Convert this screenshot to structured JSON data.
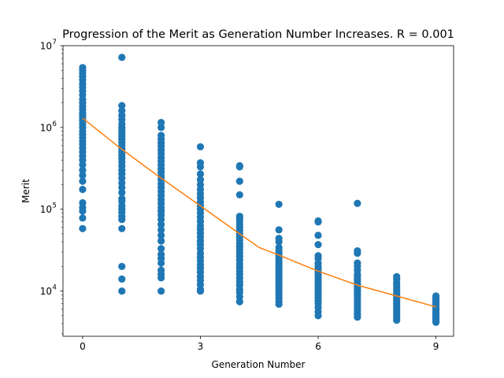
{
  "chart_data": {
    "type": "scatter",
    "title": "Progression of the Merit as Generation Number Increases. R = 0.001",
    "xlabel": "Generation Number",
    "ylabel": "Merit",
    "xlim": [
      -0.5,
      9.45
    ],
    "ylim": [
      2800,
      10000000
    ],
    "y_scale": "log",
    "x_ticks": [
      0,
      3,
      6,
      9
    ],
    "x_tick_labels": [
      "0",
      "3",
      "6",
      "9"
    ],
    "y_ticks": [
      10000,
      100000,
      1000000,
      10000000
    ],
    "y_tick_labels": [
      "10",
      "10",
      "10",
      "10"
    ],
    "y_tick_exponents": [
      "4",
      "5",
      "6",
      "7"
    ],
    "grid": false,
    "colors": {
      "points": "#1f77b4",
      "trend": "#ff7f0e"
    },
    "series": [
      {
        "kind": "scatter",
        "points": [
          [
            0,
            5400000
          ],
          [
            0,
            5000000
          ],
          [
            0,
            4600000
          ],
          [
            0,
            4200000
          ],
          [
            0,
            3800000
          ],
          [
            0,
            3400000
          ],
          [
            0,
            3100000
          ],
          [
            0,
            2800000
          ],
          [
            0,
            2500000
          ],
          [
            0,
            2200000
          ],
          [
            0,
            2000000
          ],
          [
            0,
            1800000
          ],
          [
            0,
            1650000
          ],
          [
            0,
            1500000
          ],
          [
            0,
            1400000
          ],
          [
            0,
            1300000
          ],
          [
            0,
            1200000
          ],
          [
            0,
            1100000
          ],
          [
            0,
            1000000
          ],
          [
            0,
            900000
          ],
          [
            0,
            820000
          ],
          [
            0,
            750000
          ],
          [
            0,
            680000
          ],
          [
            0,
            620000
          ],
          [
            0,
            560000
          ],
          [
            0,
            500000
          ],
          [
            0,
            450000
          ],
          [
            0,
            400000
          ],
          [
            0,
            350000
          ],
          [
            0,
            300000
          ],
          [
            0,
            260000
          ],
          [
            0,
            220000
          ],
          [
            0,
            175000
          ],
          [
            0,
            120000
          ],
          [
            0,
            105000
          ],
          [
            0,
            95000
          ],
          [
            0,
            78000
          ],
          [
            0,
            58000
          ],
          [
            1,
            7200000
          ],
          [
            1,
            1850000
          ],
          [
            1,
            1600000
          ],
          [
            1,
            1400000
          ],
          [
            1,
            1250000
          ],
          [
            1,
            1100000
          ],
          [
            1,
            1000000
          ],
          [
            1,
            920000
          ],
          [
            1,
            850000
          ],
          [
            1,
            780000
          ],
          [
            1,
            720000
          ],
          [
            1,
            660000
          ],
          [
            1,
            600000
          ],
          [
            1,
            550000
          ],
          [
            1,
            500000
          ],
          [
            1,
            460000
          ],
          [
            1,
            420000
          ],
          [
            1,
            380000
          ],
          [
            1,
            340000
          ],
          [
            1,
            300000
          ],
          [
            1,
            270000
          ],
          [
            1,
            240000
          ],
          [
            1,
            210000
          ],
          [
            1,
            185000
          ],
          [
            1,
            160000
          ],
          [
            1,
            135000
          ],
          [
            1,
            125000
          ],
          [
            1,
            110000
          ],
          [
            1,
            100000
          ],
          [
            1,
            92000
          ],
          [
            1,
            82000
          ],
          [
            1,
            75000
          ],
          [
            1,
            58000
          ],
          [
            1,
            20000
          ],
          [
            1,
            14000
          ],
          [
            1,
            10000
          ],
          [
            2,
            1150000
          ],
          [
            2,
            1000000
          ],
          [
            2,
            800000
          ],
          [
            2,
            720000
          ],
          [
            2,
            650000
          ],
          [
            2,
            590000
          ],
          [
            2,
            530000
          ],
          [
            2,
            480000
          ],
          [
            2,
            430000
          ],
          [
            2,
            390000
          ],
          [
            2,
            350000
          ],
          [
            2,
            315000
          ],
          [
            2,
            285000
          ],
          [
            2,
            255000
          ],
          [
            2,
            230000
          ],
          [
            2,
            205000
          ],
          [
            2,
            185000
          ],
          [
            2,
            165000
          ],
          [
            2,
            148000
          ],
          [
            2,
            132000
          ],
          [
            2,
            118000
          ],
          [
            2,
            105000
          ],
          [
            2,
            95000
          ],
          [
            2,
            85000
          ],
          [
            2,
            75000
          ],
          [
            2,
            65000
          ],
          [
            2,
            56000
          ],
          [
            2,
            48000
          ],
          [
            2,
            41000
          ],
          [
            2,
            33000
          ],
          [
            2,
            28000
          ],
          [
            2,
            25000
          ],
          [
            2,
            22000
          ],
          [
            2,
            18000
          ],
          [
            2,
            16000
          ],
          [
            2,
            14500
          ],
          [
            2,
            10000
          ],
          [
            3,
            580000
          ],
          [
            3,
            370000
          ],
          [
            3,
            330000
          ],
          [
            3,
            270000
          ],
          [
            3,
            230000
          ],
          [
            3,
            200000
          ],
          [
            3,
            175000
          ],
          [
            3,
            155000
          ],
          [
            3,
            138000
          ],
          [
            3,
            122000
          ],
          [
            3,
            110000
          ],
          [
            3,
            100000
          ],
          [
            3,
            90000
          ],
          [
            3,
            80000
          ],
          [
            3,
            71000
          ],
          [
            3,
            63000
          ],
          [
            3,
            57000
          ],
          [
            3,
            51000
          ],
          [
            3,
            46000
          ],
          [
            3,
            41000
          ],
          [
            3,
            37000
          ],
          [
            3,
            33000
          ],
          [
            3,
            29000
          ],
          [
            3,
            26000
          ],
          [
            3,
            23500
          ],
          [
            3,
            21000
          ],
          [
            3,
            19000
          ],
          [
            3,
            17000
          ],
          [
            3,
            15000
          ],
          [
            3,
            13500
          ],
          [
            3,
            12000
          ],
          [
            3,
            10500
          ],
          [
            3,
            10000
          ],
          [
            4,
            340000
          ],
          [
            4,
            330000
          ],
          [
            4,
            220000
          ],
          [
            4,
            150000
          ],
          [
            4,
            82000
          ],
          [
            4,
            78000
          ],
          [
            4,
            72000
          ],
          [
            4,
            66000
          ],
          [
            4,
            60000
          ],
          [
            4,
            55000
          ],
          [
            4,
            50000
          ],
          [
            4,
            46000
          ],
          [
            4,
            42000
          ],
          [
            4,
            38000
          ],
          [
            4,
            35000
          ],
          [
            4,
            32000
          ],
          [
            4,
            29000
          ],
          [
            4,
            26500
          ],
          [
            4,
            24000
          ],
          [
            4,
            21500
          ],
          [
            4,
            19500
          ],
          [
            4,
            17500
          ],
          [
            4,
            16000
          ],
          [
            4,
            14500
          ],
          [
            4,
            13000
          ],
          [
            4,
            11800
          ],
          [
            4,
            10500
          ],
          [
            4,
            9600
          ],
          [
            4,
            8500
          ],
          [
            4,
            7400
          ],
          [
            5,
            115000
          ],
          [
            5,
            56000
          ],
          [
            5,
            44000
          ],
          [
            5,
            40000
          ],
          [
            5,
            34000
          ],
          [
            5,
            31000
          ],
          [
            5,
            29000
          ],
          [
            5,
            27000
          ],
          [
            5,
            25000
          ],
          [
            5,
            23000
          ],
          [
            5,
            21500
          ],
          [
            5,
            20000
          ],
          [
            5,
            18700
          ],
          [
            5,
            17500
          ],
          [
            5,
            16300
          ],
          [
            5,
            15200
          ],
          [
            5,
            14200
          ],
          [
            5,
            13200
          ],
          [
            5,
            12300
          ],
          [
            5,
            11400
          ],
          [
            5,
            10500
          ],
          [
            5,
            9700
          ],
          [
            5,
            8900
          ],
          [
            5,
            8100
          ],
          [
            5,
            7400
          ],
          [
            5,
            6900
          ],
          [
            6,
            72000
          ],
          [
            6,
            70000
          ],
          [
            6,
            48000
          ],
          [
            6,
            37000
          ],
          [
            6,
            27000
          ],
          [
            6,
            25000
          ],
          [
            6,
            22000
          ],
          [
            6,
            20000
          ],
          [
            6,
            18500
          ],
          [
            6,
            17000
          ],
          [
            6,
            15800
          ],
          [
            6,
            14600
          ],
          [
            6,
            13500
          ],
          [
            6,
            12500
          ],
          [
            6,
            11600
          ],
          [
            6,
            10700
          ],
          [
            6,
            9900
          ],
          [
            6,
            9100
          ],
          [
            6,
            8400
          ],
          [
            6,
            7700
          ],
          [
            6,
            7000
          ],
          [
            6,
            6300
          ],
          [
            6,
            5600
          ],
          [
            6,
            5000
          ],
          [
            7,
            118000
          ],
          [
            7,
            31000
          ],
          [
            7,
            29000
          ],
          [
            7,
            22000
          ],
          [
            7,
            20000
          ],
          [
            7,
            18000
          ],
          [
            7,
            16000
          ],
          [
            7,
            15000
          ],
          [
            7,
            14000
          ],
          [
            7,
            13000
          ],
          [
            7,
            12200
          ],
          [
            7,
            11500
          ],
          [
            7,
            10800
          ],
          [
            7,
            10100
          ],
          [
            7,
            9500
          ],
          [
            7,
            8900
          ],
          [
            7,
            8300
          ],
          [
            7,
            7700
          ],
          [
            7,
            7100
          ],
          [
            7,
            6600
          ],
          [
            7,
            6100
          ],
          [
            7,
            5600
          ],
          [
            7,
            5200
          ],
          [
            7,
            4800
          ],
          [
            8,
            15000
          ],
          [
            8,
            14000
          ],
          [
            8,
            12800
          ],
          [
            8,
            12000
          ],
          [
            8,
            11200
          ],
          [
            8,
            10500
          ],
          [
            8,
            9900
          ],
          [
            8,
            9300
          ],
          [
            8,
            8800
          ],
          [
            8,
            8300
          ],
          [
            8,
            7800
          ],
          [
            8,
            7300
          ],
          [
            8,
            6900
          ],
          [
            8,
            6500
          ],
          [
            8,
            6100
          ],
          [
            8,
            5700
          ],
          [
            8,
            5300
          ],
          [
            8,
            5000
          ],
          [
            8,
            4700
          ],
          [
            8,
            4400
          ],
          [
            9,
            8700
          ],
          [
            9,
            8300
          ],
          [
            9,
            7900
          ],
          [
            9,
            7600
          ],
          [
            9,
            7300
          ],
          [
            9,
            7000
          ],
          [
            9,
            6700
          ],
          [
            9,
            6400
          ],
          [
            9,
            6100
          ],
          [
            9,
            5800
          ],
          [
            9,
            5500
          ],
          [
            9,
            5300
          ],
          [
            9,
            5100
          ],
          [
            9,
            4900
          ],
          [
            9,
            4700
          ],
          [
            9,
            4500
          ],
          [
            9,
            4300
          ],
          [
            9,
            4150
          ]
        ]
      },
      {
        "kind": "line",
        "x": [
          0,
          1,
          2,
          3,
          4,
          4.5,
          5,
          6,
          7,
          8,
          9
        ],
        "y": [
          1300000,
          540000,
          240000,
          110000,
          50000,
          34000,
          27500,
          17500,
          11800,
          8700,
          6400
        ]
      }
    ]
  }
}
